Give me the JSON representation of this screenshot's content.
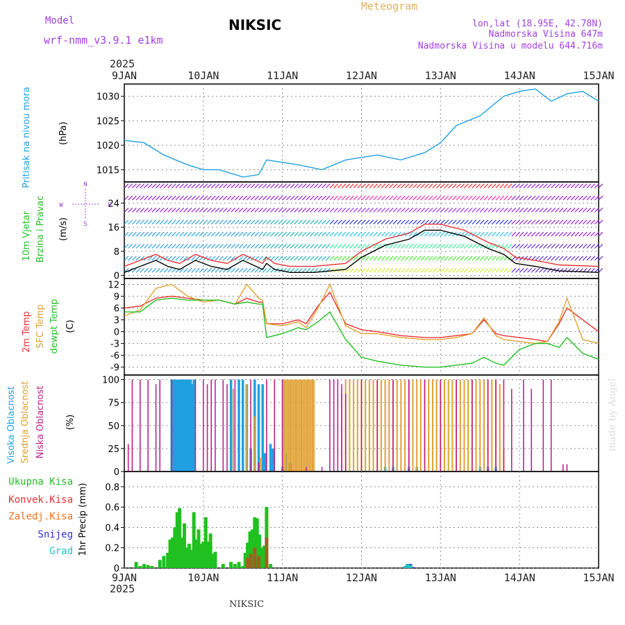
{
  "header": {
    "model_label": "Model",
    "model_name": "wrf-nmm_v3.9.1 e1km",
    "station": "NIKSIC",
    "title": "Meteogram",
    "coords": "lon,lat (18.95E, 42.78N)",
    "elevation": "Nadmorska Visina 647m",
    "model_elevation": "Nadmorska Visina u modelu 644.716m",
    "footer_station": "NIKSIC",
    "watermark": "made by Angel",
    "year": "2025"
  },
  "colors": {
    "pressure": "#1fa0e0",
    "temp2m": "#e83030",
    "sfc": "#e0a030",
    "dewpt": "#20c020",
    "high_cloud": "#1fa0e0",
    "mid_cloud": "#e0a030",
    "low_cloud": "#c0208a",
    "total_precip": "#20c020",
    "conv_precip": "#e83030",
    "freezing": "#f07020",
    "snow": "#3030d0",
    "hail": "#20c0c0",
    "wind_line": "#000000",
    "gust": "#e83030",
    "label_purple": "#a040e0"
  },
  "x_axis": {
    "tick_labels": [
      "9JAN",
      "10JAN",
      "11JAN",
      "12JAN",
      "13JAN",
      "14JAN",
      "15JAN"
    ],
    "year": "2025"
  },
  "panels": {
    "pressure": {
      "ylabel": "Pritisak na nivou mora",
      "unit": "(hPa)",
      "ticks": [
        "1015",
        "1020",
        "1025",
        "1030"
      ]
    },
    "wind": {
      "ylabel1": "10m Vjetar",
      "ylabel2": "Brzina i Pravac",
      "unit": "(m/s)",
      "ticks": [
        "0",
        "8",
        "16",
        "24"
      ],
      "compass_n": "N",
      "compass_w": "W",
      "compass_e": "E",
      "compass_s": "S"
    },
    "temp": {
      "ylabel1": "2m Temp",
      "ylabel2": "SFC Temp",
      "ylabel3": "dewpt Temp",
      "unit": "(C)",
      "ticks": [
        "-9",
        "-6",
        "-3",
        "0",
        "3",
        "6",
        "9",
        "12"
      ]
    },
    "cloud": {
      "ylabel1": "Visoka Oblacnost",
      "ylabel2": "Srednja Oblacnost",
      "ylabel3": "Niska Oblacnost",
      "unit": "(%)",
      "ticks": [
        "0",
        "25",
        "50",
        "75",
        "100"
      ]
    },
    "precip": {
      "ylabel": "1hr Precip (mm)",
      "ticks": [
        "0",
        "0.2",
        "0.4",
        "0.6",
        "0.8"
      ],
      "legend": [
        "Ukupna Kisa",
        "Konvek.Kisa",
        "Zaledj.Kisa",
        "Snijeg",
        "Grad"
      ]
    }
  },
  "chart_data": [
    {
      "type": "line",
      "name": "pressure",
      "ylim": [
        1012.5,
        1032.5
      ],
      "x": [
        0,
        0.25,
        0.5,
        0.8,
        1.0,
        1.2,
        1.5,
        1.7,
        1.8,
        2.0,
        2.2,
        2.5,
        2.8,
        3.0,
        3.2,
        3.5,
        3.8,
        4.0,
        4.2,
        4.5,
        4.8,
        5.0,
        5.2,
        5.4,
        5.6,
        5.8,
        6.0
      ],
      "values": [
        1021,
        1020.5,
        1018,
        1016,
        1015,
        1015,
        1013.5,
        1014,
        1017,
        1016.5,
        1016,
        1015,
        1017,
        1017.5,
        1018,
        1017,
        1018.5,
        1020.5,
        1024,
        1026,
        1030,
        1031,
        1031.5,
        1029,
        1030.5,
        1031,
        1029
      ]
    },
    {
      "type": "line",
      "name": "wind",
      "ylim": [
        -1,
        31
      ],
      "x": [
        0,
        0.2,
        0.4,
        0.55,
        0.7,
        0.9,
        1.1,
        1.3,
        1.5,
        1.75,
        1.8,
        1.9,
        2.1,
        2.4,
        2.8,
        3.0,
        3.3,
        3.6,
        3.8,
        4.0,
        4.3,
        4.6,
        4.8,
        4.95,
        5.2,
        5.5,
        6.0
      ],
      "values": [
        1,
        3,
        5,
        3,
        2,
        5,
        3,
        2,
        5,
        2,
        4,
        2,
        1,
        1,
        2,
        6,
        10,
        12,
        15,
        15,
        13,
        9,
        7,
        4,
        3,
        1.5,
        1
      ]
    },
    {
      "type": "line",
      "name": "temperature",
      "ylim": [
        -11,
        13.5
      ],
      "x": [
        0,
        0.2,
        0.4,
        0.6,
        0.8,
        1.0,
        1.2,
        1.4,
        1.55,
        1.7,
        1.75,
        1.8,
        2.0,
        2.2,
        2.3,
        2.45,
        2.6,
        2.8,
        3.0,
        3.2,
        3.5,
        3.8,
        4.0,
        4.2,
        4.4,
        4.55,
        4.7,
        4.8,
        5.0,
        5.2,
        5.35,
        5.5,
        5.6,
        5.8,
        6.0
      ],
      "series": [
        {
          "name": "2m Temp",
          "values": [
            6,
            6.5,
            8.5,
            9,
            8.5,
            8,
            8,
            7,
            8.5,
            7.5,
            7.5,
            2,
            2,
            3,
            2,
            6.5,
            10,
            2,
            0.5,
            0,
            -1,
            -1.5,
            -1.5,
            -1,
            -0.5,
            3,
            -0.5,
            -1,
            -1.5,
            -2,
            -2.5,
            2,
            6,
            3,
            0
          ]
        },
        {
          "name": "SFC Temp",
          "values": [
            4,
            5.5,
            11,
            12,
            9,
            7.5,
            8,
            7,
            12,
            8.5,
            8,
            2,
            1.5,
            2.5,
            1,
            6,
            12,
            1.5,
            -0.5,
            -0.5,
            -1.5,
            -2,
            -2,
            -1.5,
            -0.5,
            3.5,
            -1,
            -2,
            -2.5,
            -3,
            -2.5,
            2.5,
            8.5,
            -2,
            -3
          ]
        },
        {
          "name": "dewpt Temp",
          "values": [
            5,
            5,
            8,
            8.5,
            8,
            8,
            8,
            7,
            7.5,
            7,
            7,
            -1.5,
            -0.5,
            1,
            0.5,
            2.5,
            5,
            -2,
            -6.5,
            -7.5,
            -8.5,
            -9,
            -9,
            -8.5,
            -8,
            -6.5,
            -8,
            -8.5,
            -4.5,
            -3,
            -3,
            -4,
            -1.5,
            -5.5,
            -7
          ]
        }
      ]
    },
    {
      "type": "bar",
      "name": "cloud",
      "ylim": [
        0,
        105
      ],
      "series": [
        {
          "name": "Visoka Oblacnost",
          "x": [
            0.6,
            0.62,
            0.64,
            0.66,
            0.68,
            0.7,
            0.72,
            0.74,
            0.76,
            0.78,
            0.8,
            0.82,
            0.84,
            0.86,
            0.88,
            1.35,
            1.45,
            1.5,
            1.55,
            1.6,
            1.65,
            1.7,
            1.75,
            1.78,
            1.85,
            1.88,
            2.0,
            2.05,
            2.1,
            3.3,
            3.4,
            3.6,
            3.7,
            4.5,
            4.6,
            4.7
          ],
          "values": [
            100,
            100,
            100,
            100,
            100,
            100,
            100,
            100,
            100,
            100,
            100,
            100,
            100,
            95,
            100,
            100,
            100,
            100,
            95,
            25,
            100,
            95,
            95,
            20,
            30,
            25,
            5,
            20,
            10,
            5,
            5,
            5,
            5,
            5,
            5,
            5
          ]
        },
        {
          "name": "Srednja Oblacnost",
          "x": [
            1.38,
            1.55,
            1.65,
            1.72,
            2.0,
            2.02,
            2.04,
            2.06,
            2.08,
            2.1,
            2.12,
            2.14,
            2.16,
            2.18,
            2.2,
            2.22,
            2.24,
            2.26,
            2.28,
            2.3,
            2.32,
            2.34,
            2.36,
            2.38,
            2.4,
            2.75,
            2.8,
            2.85,
            2.9,
            2.95,
            3.0,
            3.05,
            3.1,
            3.15,
            3.2,
            3.25,
            3.3,
            3.35,
            3.4,
            3.45,
            3.5,
            3.55,
            3.6,
            3.65,
            3.7,
            3.75,
            3.8,
            3.85,
            3.9,
            3.95,
            4.0,
            4.05,
            4.1,
            4.15,
            4.2,
            4.25,
            4.3,
            4.35,
            4.4,
            4.45,
            4.5,
            4.55,
            4.6,
            4.65,
            4.7,
            4.75,
            4.8
          ],
          "values": [
            90,
            95,
            60,
            15,
            100,
            100,
            100,
            100,
            100,
            100,
            100,
            100,
            100,
            100,
            100,
            100,
            100,
            100,
            100,
            100,
            100,
            100,
            100,
            100,
            100,
            85,
            100,
            100,
            100,
            100,
            100,
            100,
            100,
            100,
            100,
            100,
            100,
            100,
            100,
            100,
            100,
            100,
            100,
            100,
            100,
            100,
            100,
            100,
            100,
            100,
            100,
            100,
            100,
            100,
            100,
            100,
            100,
            100,
            100,
            100,
            100,
            100,
            100,
            100,
            100,
            95,
            25
          ]
        },
        {
          "name": "Niska Oblacnost",
          "x": [
            0.05,
            0.1,
            0.2,
            0.3,
            0.4,
            0.45,
            0.6,
            0.9,
            1.0,
            1.05,
            1.1,
            1.15,
            1.25,
            1.3,
            1.4,
            1.6,
            1.7,
            1.8,
            1.9,
            2.0,
            2.3,
            2.5,
            2.6,
            2.65,
            2.7,
            2.75,
            2.8,
            3.0,
            3.2,
            3.4,
            3.6,
            3.8,
            4.0,
            4.2,
            4.4,
            4.6,
            4.7,
            4.8,
            4.9,
            5.05,
            5.15,
            5.3,
            5.4,
            5.55,
            5.6
          ],
          "values": [
            30,
            100,
            100,
            100,
            95,
            100,
            100,
            100,
            100,
            95,
            100,
            100,
            100,
            95,
            100,
            100,
            10,
            100,
            100,
            100,
            5,
            5,
            100,
            100,
            100,
            95,
            85,
            100,
            100,
            100,
            100,
            100,
            100,
            100,
            100,
            100,
            100,
            100,
            90,
            100,
            90,
            100,
            100,
            8,
            8
          ]
        }
      ]
    },
    {
      "type": "bar",
      "name": "precipitation",
      "ylim": [
        0,
        0.95
      ],
      "series": [
        {
          "name": "Ukupna Kisa",
          "x": [
            0.15,
            0.2,
            0.25,
            0.3,
            0.35,
            0.45,
            0.5,
            0.55,
            0.58,
            0.61,
            0.64,
            0.67,
            0.7,
            0.73,
            0.76,
            0.79,
            0.82,
            0.85,
            0.88,
            0.91,
            0.94,
            0.97,
            1.0,
            1.03,
            1.06,
            1.09,
            1.12,
            1.15,
            1.25,
            1.35,
            1.4,
            1.45,
            1.5,
            1.53,
            1.56,
            1.59,
            1.62,
            1.65,
            1.68,
            1.71,
            1.74,
            1.77,
            1.8,
            1.85
          ],
          "values": [
            0.06,
            0.02,
            0.04,
            0.03,
            0.02,
            0.08,
            0.12,
            0.15,
            0.28,
            0.3,
            0.4,
            0.55,
            0.59,
            0.3,
            0.44,
            0.2,
            0.24,
            0.18,
            0.55,
            0.28,
            0.38,
            0.24,
            0.26,
            0.5,
            0.26,
            0.34,
            0.14,
            0.16,
            0.04,
            0.06,
            0.04,
            0.06,
            0.02,
            0.15,
            0.25,
            0.36,
            0.38,
            0.5,
            0.49,
            0.33,
            0.2,
            0.22,
            0.6,
            0.04
          ]
        },
        {
          "name": "Konvek.Kisa",
          "x": [
            1.56,
            1.6,
            1.65,
            1.7,
            1.8
          ],
          "values": [
            0.1,
            0.14,
            0.2,
            0.12,
            0.3
          ]
        },
        {
          "name": "Snijeg",
          "x": [
            3.55,
            3.58,
            3.62,
            3.65
          ],
          "values": [
            0.01,
            0.04,
            0.04,
            0.01
          ]
        },
        {
          "name": "Grad",
          "x": [
            3.55,
            3.58,
            3.62
          ],
          "values": [
            0.02,
            0.04,
            0.03
          ]
        }
      ]
    }
  ]
}
